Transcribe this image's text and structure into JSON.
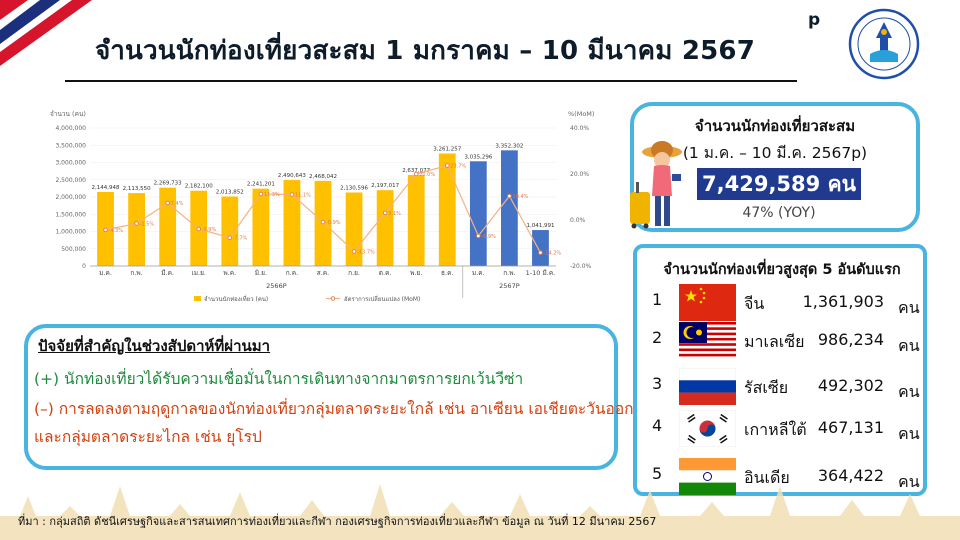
{
  "header": {
    "title": "จำนวนนักท่องเที่ยวสะสม 1 มกราคม – 10 มีนาคม 2567",
    "superscript": "p"
  },
  "colors": {
    "accent_border": "#49b4e0",
    "bar_yellow": "#ffc000",
    "bar_blue": "#4472c4",
    "line_orange": "#f4b183",
    "value_bar": "#1f3a8f"
  },
  "chart_data": {
    "type": "bar",
    "ylabel_left": "จำนวน (คน)",
    "ylabel_right": "%(MoM)",
    "ylim": [
      0,
      4000000
    ],
    "y2lim": [
      -20,
      40
    ],
    "y_ticks": [
      "0",
      "500,000",
      "1,000,000",
      "1,500,000",
      "2,000,000",
      "2,500,000",
      "3,000,000",
      "3,500,000",
      "4,000,000"
    ],
    "y2_ticks": [
      "-20.0%",
      "0.0%",
      "20.0%",
      "40.0%"
    ],
    "categories": [
      "ม.ค.",
      "ก.พ.",
      "มี.ค.",
      "เม.ย.",
      "พ.ค.",
      "มิ.ย.",
      "ก.ค.",
      "ส.ค.",
      "ก.ย.",
      "ต.ค.",
      "พ.ย.",
      "ธ.ค.",
      "ม.ค.",
      "ก.พ.",
      "1-10 มี.ค."
    ],
    "year_groups": [
      {
        "label": "2566P",
        "count": 12
      },
      {
        "label": "2567P",
        "count": 3
      }
    ],
    "series": [
      {
        "name": "จำนวนนักท่องเที่ยว (คน)",
        "values": [
          2144948,
          2113550,
          2269733,
          2182100,
          2013852,
          2241201,
          2490643,
          2468042,
          2130596,
          2197017,
          2637077,
          3261257,
          3035296,
          3352302,
          1041991
        ],
        "labels": [
          "2,144,948",
          "2,113,550",
          "2,269,733",
          "2,182,100",
          "2,013,852",
          "2,241,201",
          "2,490,643",
          "2,468,042",
          "2,130,596",
          "2,197,017",
          "2,637,077",
          "3,261,257",
          "3,035,296",
          "3,352,302",
          "1,041,991"
        ]
      },
      {
        "name": "อัตราการเปลี่ยนแปลง (MoM)",
        "values": [
          -4.3,
          -1.5,
          7.4,
          -3.9,
          -7.7,
          11.3,
          11.1,
          -0.9,
          -13.7,
          3.1,
          20.0,
          23.7,
          -6.9,
          10.4,
          -14.2
        ],
        "labels": [
          "-4.3%",
          "-1.5%",
          "7.4%",
          "-3.9%",
          "-7.7%",
          "11.3%",
          "11.1%",
          "-0.9%",
          "-13.7%",
          "3.1%",
          "20.0%",
          "23.7%",
          "-6.9%",
          "10.4%",
          "-14.2%"
        ]
      }
    ]
  },
  "factors": {
    "title": "ปัจจัยที่สำคัญในช่วงสัปดาห์ที่ผ่านมา",
    "positive": "(+) นักท่องเที่ยวได้รับความเชื่อมั่นในการเดินทางจากมาตรการยกเว้นวีซ่า",
    "negative_1": "(–) การลดลงตามฤดูกาลของนักท่องเที่ยวกลุ่มตลาดระยะใกล้ เช่น อาเซียน เอเชียตะวันออก",
    "negative_2": "และกลุ่มตลาดระยะไกล เช่น ยุโรป"
  },
  "cumulative": {
    "title": "จำนวนนักท่องเที่ยวสะสม",
    "period": "(1 ม.ค. – 10 มี.ค. 2567p)",
    "value": "7,429,589 คน",
    "yoy": "47% (YOY)"
  },
  "top5": {
    "title": "จำนวนนักท่องเที่ยวสูงสุด 5 อันดับแรก",
    "unit": "คน",
    "rows": [
      {
        "rank": "1",
        "country": "จีน",
        "value": "1,361,903",
        "flag": "china-flag-icon"
      },
      {
        "rank": "2",
        "country": "มาเลเซีย",
        "value": "986,234",
        "flag": "malaysia-flag-icon"
      },
      {
        "rank": "3",
        "country": "รัสเซีย",
        "value": "492,302",
        "flag": "russia-flag-icon"
      },
      {
        "rank": "4",
        "country": "เกาหลีใต้",
        "value": "467,131",
        "flag": "south-korea-flag-icon"
      },
      {
        "rank": "5",
        "country": "อินเดีย",
        "value": "364,422",
        "flag": "india-flag-icon"
      }
    ]
  },
  "footer": {
    "source": "ที่มา : กลุ่มสถิติ ดัชนีเศรษฐกิจและสารสนเทศการท่องเที่ยวและกีฬา กองเศรษฐกิจการท่องเที่ยวและกีฬา ข้อมูล ณ วันที่ 12 มีนาคม 2567"
  }
}
